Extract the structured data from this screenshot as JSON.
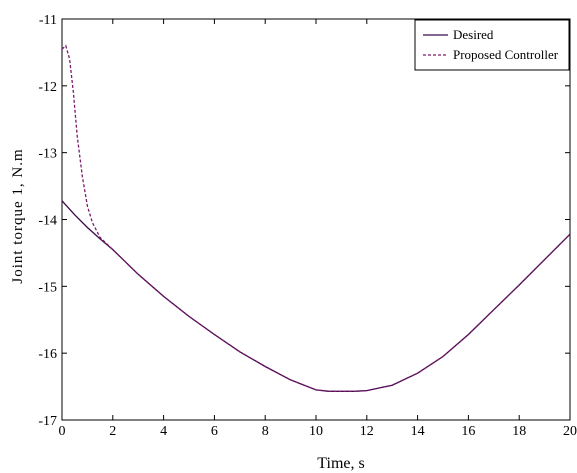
{
  "chart_data": {
    "type": "line",
    "title": "",
    "xlabel": "Time, s",
    "ylabel": "Joint torque 1, N.m",
    "xlim": [
      0,
      20
    ],
    "ylim": [
      -17,
      -11
    ],
    "xticks": [
      0,
      2,
      4,
      6,
      8,
      10,
      12,
      14,
      16,
      18,
      20
    ],
    "yticks": [
      -11,
      -12,
      -13,
      -14,
      -15,
      -16,
      -17
    ],
    "grid": false,
    "legend_position": "top-right",
    "series": [
      {
        "name": "Desired",
        "style": "solid",
        "color": "#3a0a4a",
        "x": [
          0,
          0.5,
          1,
          1.5,
          2,
          3,
          4,
          5,
          6,
          7,
          8,
          9,
          10,
          10.5,
          11,
          11.5,
          12,
          13,
          14,
          15,
          16,
          17,
          18,
          19,
          20
        ],
        "y": [
          -13.72,
          -13.93,
          -14.12,
          -14.29,
          -14.45,
          -14.82,
          -15.15,
          -15.45,
          -15.72,
          -15.98,
          -16.2,
          -16.4,
          -16.55,
          -16.57,
          -16.57,
          -16.57,
          -16.56,
          -16.48,
          -16.3,
          -16.05,
          -15.72,
          -15.35,
          -14.98,
          -14.6,
          -14.22
        ]
      },
      {
        "name": "Proposed Controller",
        "style": "dashed",
        "color": "#7a1a6a",
        "x": [
          0,
          0.15,
          0.3,
          0.45,
          0.6,
          0.8,
          1,
          1.2,
          1.5,
          2,
          3,
          4,
          5,
          6,
          7,
          8,
          9,
          10,
          10.5,
          11,
          11.5,
          12,
          13,
          14,
          15,
          16,
          17,
          18,
          19,
          20
        ],
        "y": [
          -11.45,
          -11.4,
          -11.6,
          -12.1,
          -12.75,
          -13.35,
          -13.8,
          -14.05,
          -14.27,
          -14.45,
          -14.82,
          -15.15,
          -15.45,
          -15.72,
          -15.98,
          -16.2,
          -16.4,
          -16.55,
          -16.57,
          -16.57,
          -16.57,
          -16.56,
          -16.48,
          -16.3,
          -16.05,
          -15.72,
          -15.35,
          -14.98,
          -14.6,
          -14.22
        ]
      }
    ]
  }
}
